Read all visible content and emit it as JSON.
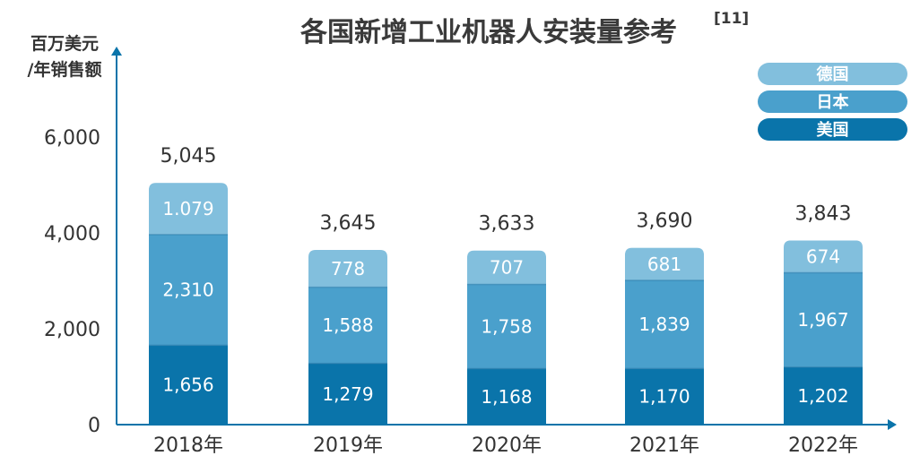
{
  "chart_data": {
    "type": "bar",
    "stacked": true,
    "title": "各国新增工业机器人安装量参考",
    "title_ref": "[11]",
    "ylabel_lines": [
      "百万美元",
      "/年销售额"
    ],
    "xlabel": "",
    "categories": [
      "2018年",
      "2019年",
      "2020年",
      "2021年",
      "2022年"
    ],
    "yticks": [
      0,
      2000,
      4000,
      6000
    ],
    "ytick_labels": [
      "0",
      "2,000",
      "4,000",
      "6,000"
    ],
    "ylim": [
      0,
      7500
    ],
    "grid": false,
    "legend_position": "top-right",
    "series": [
      {
        "name": "美国",
        "color": "#0a74aa",
        "values": [
          1656,
          1279,
          1168,
          1170,
          1202
        ],
        "labels": [
          "1,656",
          "1,279",
          "1,168",
          "1,170",
          "1,202"
        ]
      },
      {
        "name": "日本",
        "color": "#4aa0cc",
        "values": [
          2310,
          1588,
          1758,
          1839,
          1967
        ],
        "labels": [
          "2,310",
          "1,588",
          "1,758",
          "1,839",
          "1,967"
        ]
      },
      {
        "name": "德国",
        "color": "#82bfdd",
        "values": [
          1079,
          778,
          707,
          681,
          674
        ],
        "labels": [
          "1.079",
          "778",
          "707",
          "681",
          "674"
        ]
      }
    ],
    "totals": [
      5045,
      3645,
      3633,
      3690,
      3843
    ],
    "total_labels": [
      "5,045",
      "3,645",
      "3,633",
      "3,690",
      "3,843"
    ],
    "legend_order": [
      "德国",
      "日本",
      "美国"
    ],
    "axis_color": "#0a74aa"
  }
}
